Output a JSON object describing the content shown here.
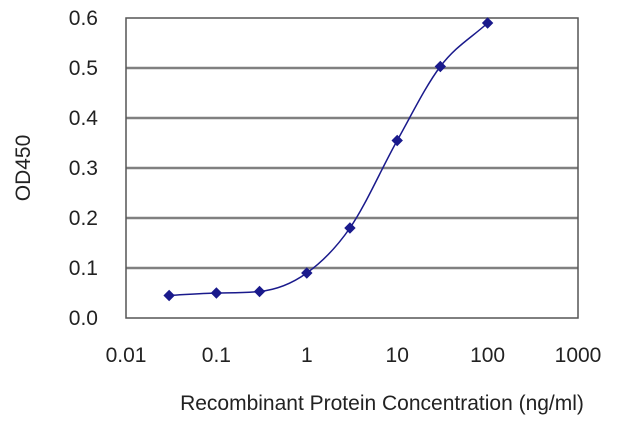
{
  "chart_data": {
    "type": "scatter",
    "title": "",
    "xlabel": "Recombinant Protein Concentration (ng/ml)",
    "ylabel": "OD450",
    "x_scale": "log",
    "xlim": [
      0.01,
      1000
    ],
    "ylim": [
      0.0,
      0.6
    ],
    "x_ticks": [
      "0.01",
      "0.1",
      "1",
      "10",
      "100",
      "1000"
    ],
    "y_ticks": [
      "0.0",
      "0.1",
      "0.2",
      "0.3",
      "0.4",
      "0.5",
      "0.6"
    ],
    "grid": "horizontal",
    "legend": "none",
    "series": [
      {
        "x": [
          0.03,
          0.1,
          0.3,
          1,
          3,
          10,
          30,
          100
        ],
        "y": [
          0.045,
          0.05,
          0.053,
          0.09,
          0.18,
          0.355,
          0.503,
          0.59
        ],
        "marker": "diamond",
        "fit": "sigmoid curve"
      }
    ],
    "colors": {
      "series": "#1a1a8c",
      "grid": "#808080",
      "frame": "#555555"
    }
  }
}
